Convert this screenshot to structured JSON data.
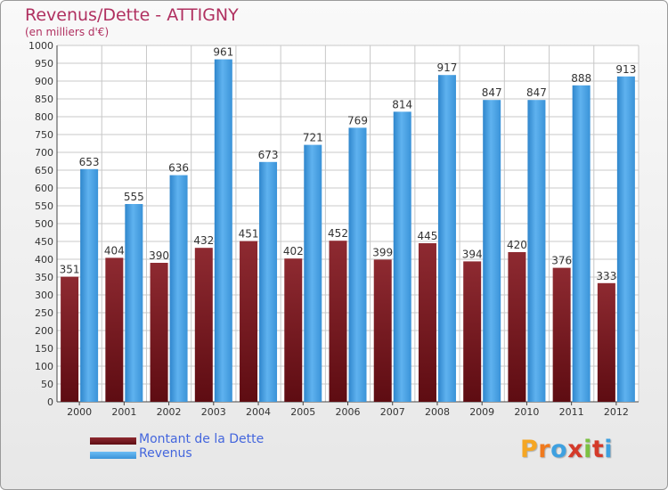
{
  "chart_data": {
    "type": "bar",
    "title": "Revenus/Dette - ATTIGNY",
    "subtitle": "(en milliers d'€)",
    "categories": [
      "2000",
      "2001",
      "2002",
      "2003",
      "2004",
      "2005",
      "2006",
      "2007",
      "2008",
      "2009",
      "2010",
      "2011",
      "2012"
    ],
    "series": [
      {
        "name": "Montant de la Dette",
        "values": [
          351,
          404,
          390,
          432,
          451,
          402,
          452,
          399,
          445,
          394,
          420,
          376,
          333
        ]
      },
      {
        "name": "Revenus",
        "values": [
          653,
          555,
          636,
          961,
          673,
          721,
          769,
          814,
          917,
          847,
          847,
          888,
          913
        ]
      }
    ],
    "ylim": [
      0,
      1000
    ],
    "ytick_step": 50,
    "grid": true,
    "legend": "bottom-left"
  },
  "colors": {
    "dette": "#7a1a22",
    "dette_light": "#9a2a32",
    "revenus": "#4aa3e6",
    "revenus_light": "#65b6f0",
    "title": "#b03060",
    "legend_text": "#4466dd",
    "grid": "#c8c8c8"
  },
  "logo": {
    "text": "Proxiti",
    "letter_colors": [
      "#f5a623",
      "#f07a1e",
      "#3ea0e0",
      "#d43a2a",
      "#7bc142",
      "#d43a2a",
      "#3ea0e0"
    ]
  }
}
